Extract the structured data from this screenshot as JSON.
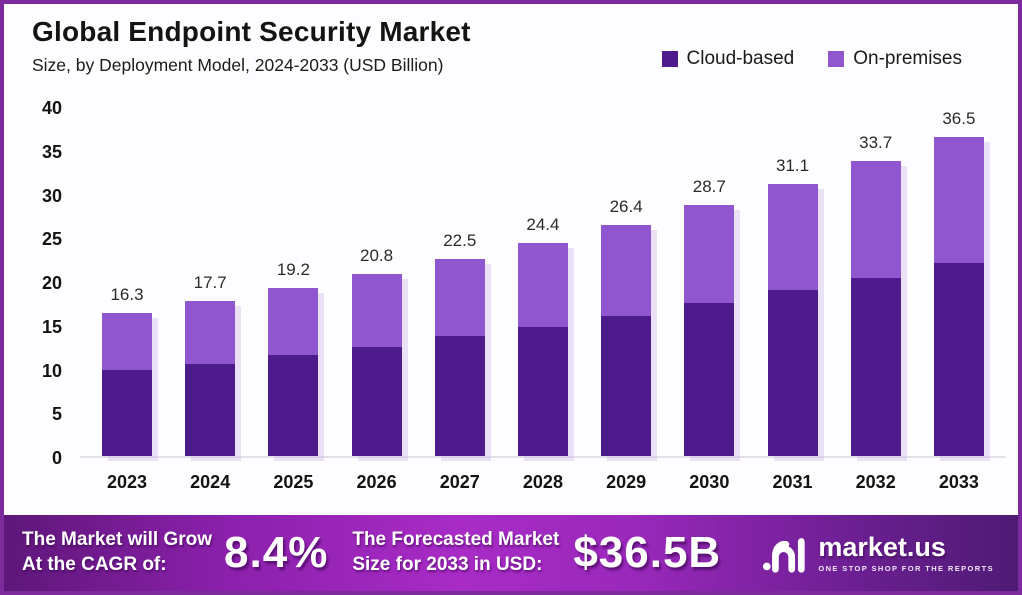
{
  "header": {
    "title": "Global Endpoint Security Market",
    "subtitle": "Size, by Deployment Model, 2024-2033 (USD Billion)"
  },
  "legend": [
    {
      "label": "Cloud-based",
      "color": "#4e1b8c"
    },
    {
      "label": "On-premises",
      "color": "#8f56cf"
    }
  ],
  "chart_data": {
    "type": "bar",
    "stacked": true,
    "title": "Global Endpoint Security Market Size, by Deployment Model, 2024-2033 (USD Billion)",
    "categories": [
      "2023",
      "2024",
      "2025",
      "2026",
      "2027",
      "2028",
      "2029",
      "2030",
      "2031",
      "2032",
      "2033"
    ],
    "series": [
      {
        "name": "Cloud-based",
        "color": "#4e1b8c",
        "values": [
          9.8,
          10.5,
          11.6,
          12.5,
          13.7,
          14.7,
          16.0,
          17.5,
          19.0,
          20.4,
          22.1
        ]
      },
      {
        "name": "On-premises",
        "color": "#8f56cf",
        "values": [
          6.5,
          7.2,
          7.6,
          8.3,
          8.8,
          9.7,
          10.4,
          11.2,
          12.1,
          13.3,
          14.4
        ]
      }
    ],
    "totals": [
      16.3,
      17.7,
      19.2,
      20.8,
      22.5,
      24.4,
      26.4,
      28.7,
      31.1,
      33.7,
      36.5
    ],
    "total_labels": [
      "16.3",
      "17.7",
      "19.2",
      "20.8",
      "22.5",
      "24.4",
      "26.4",
      "28.7",
      "31.1",
      "33.7",
      "36.5"
    ],
    "xlabel": "",
    "ylabel": "",
    "ylim": [
      0,
      40
    ],
    "yticks": [
      0,
      5,
      10,
      15,
      20,
      25,
      30,
      35,
      40
    ],
    "grid": false,
    "legend_position": "top-right"
  },
  "footer": {
    "cagr_label_line1": "The Market will Grow",
    "cagr_label_line2": "At the CAGR of:",
    "cagr_value": "8.4%",
    "forecast_label_line1": "The Forecasted Market",
    "forecast_label_line2": "Size for 2033 in USD:",
    "forecast_value": "$36.5B",
    "brand": {
      "name": "market.us",
      "tagline": "ONE STOP SHOP FOR THE REPORTS"
    }
  },
  "colors": {
    "border": "#7d2b9c",
    "cloud_based": "#4e1b8c",
    "on_premises": "#8f56cf",
    "banner_mid": "#a82bc6"
  }
}
